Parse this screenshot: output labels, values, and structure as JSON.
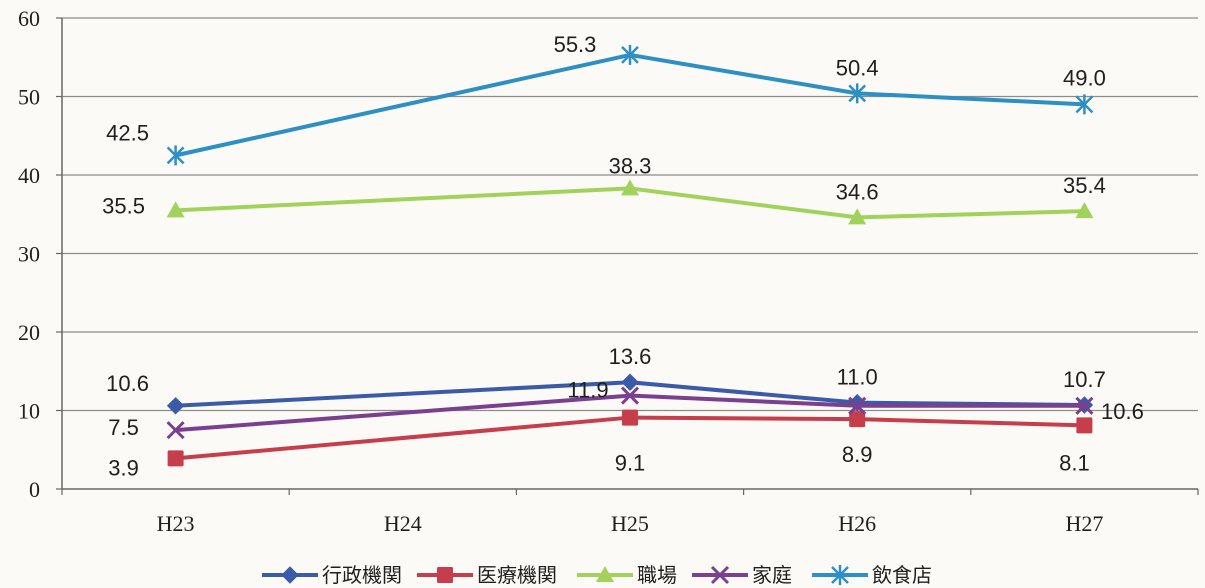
{
  "chart_data": {
    "type": "line",
    "title": "",
    "xlabel": "",
    "ylabel": "",
    "categories": [
      "H23",
      "H24",
      "H25",
      "H26",
      "H27"
    ],
    "ylim": [
      0,
      60
    ],
    "yticks": [
      0,
      10,
      20,
      30,
      40,
      50,
      60
    ],
    "grid": true,
    "legend_position": "bottom",
    "series": [
      {
        "name": "行政機関",
        "color": "#3b5ba8",
        "marker": "diamond",
        "values": [
          10.6,
          null,
          13.6,
          11.0,
          10.7
        ],
        "labels": [
          "10.6",
          "",
          "13.6",
          "11.0",
          "10.7"
        ]
      },
      {
        "name": "医療機関",
        "color": "#c63d4b",
        "marker": "square",
        "values": [
          3.9,
          null,
          9.1,
          8.9,
          8.1
        ],
        "labels": [
          "3.9",
          "",
          "9.1",
          "8.9",
          "8.1"
        ]
      },
      {
        "name": "職場",
        "color": "#a2d25c",
        "marker": "triangle",
        "values": [
          35.5,
          null,
          38.3,
          34.6,
          35.4
        ],
        "labels": [
          "35.5",
          "",
          "38.3",
          "34.6",
          "35.4"
        ]
      },
      {
        "name": "家庭",
        "color": "#7a3f8f",
        "marker": "x",
        "values": [
          7.5,
          null,
          11.9,
          10.6,
          10.6
        ],
        "labels": [
          "7.5",
          "",
          "11.9",
          "",
          "10.6"
        ]
      },
      {
        "name": "飲食店",
        "color": "#2e8fc4",
        "marker": "asterisk",
        "values": [
          42.5,
          null,
          55.3,
          50.4,
          49.0
        ],
        "labels": [
          "42.5",
          "",
          "55.3",
          "50.4",
          "49.0"
        ]
      }
    ]
  }
}
